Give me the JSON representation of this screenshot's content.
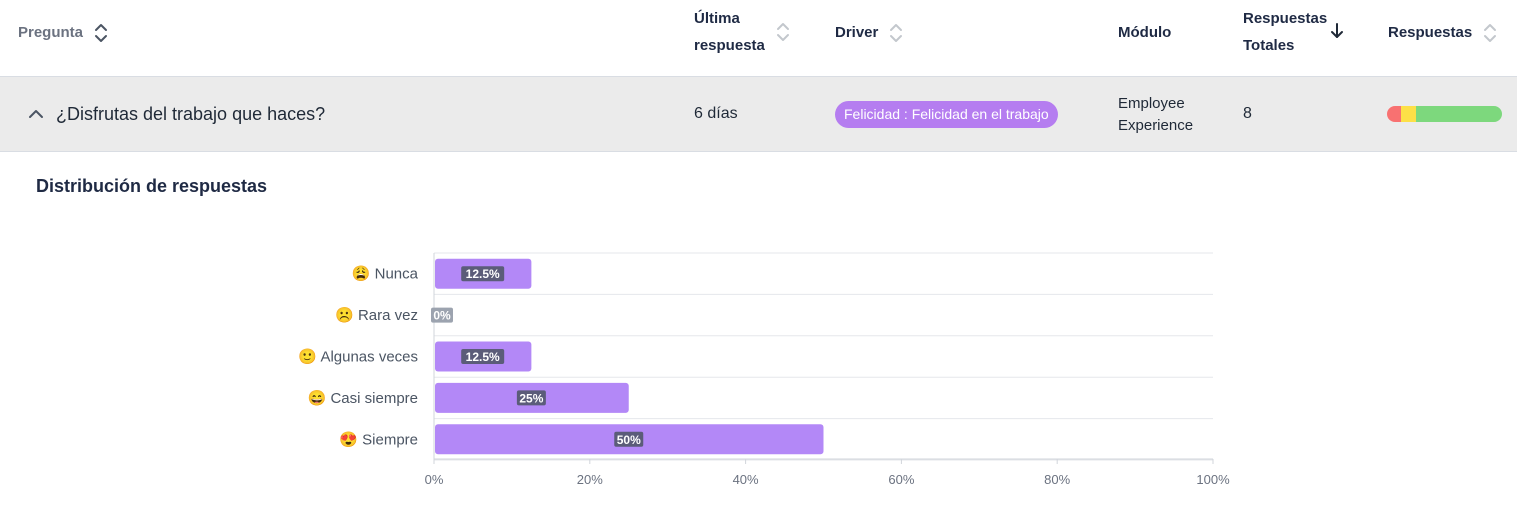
{
  "header": {
    "pregunta": "Pregunta",
    "ultima_respuesta_line1": "Última",
    "ultima_respuesta_line2": "respuesta",
    "driver": "Driver",
    "modulo": "Módulo",
    "respuestas_totales_line1": "Respuestas",
    "respuestas_totales_line2": "Totales",
    "respuestas": "Respuestas"
  },
  "row": {
    "question": "¿Disfrutas del trabajo que haces?",
    "last_response": "6 días",
    "driver": "Felicidad : Felicidad en el trabajo",
    "modulo_line1": "Employee",
    "modulo_line2": "Experience",
    "total": "8",
    "response_bar": [
      {
        "color": "#f87171",
        "fraction": 0.125
      },
      {
        "color": "#fde047",
        "fraction": 0.125
      },
      {
        "color": "#7dd87d",
        "fraction": 0.75
      }
    ]
  },
  "section_title": "Distribución de respuestas",
  "colors": {
    "bar": "#b388f7",
    "pill": "#b57df0",
    "zero_badge": "#9ca3af"
  },
  "chart_data": {
    "type": "bar",
    "orientation": "horizontal",
    "categories": [
      {
        "label": "Nunca",
        "emoji": "😩"
      },
      {
        "label": "Rara vez",
        "emoji": "☹️"
      },
      {
        "label": "Algunas veces",
        "emoji": "🙂"
      },
      {
        "label": "Casi siempre",
        "emoji": "😄"
      },
      {
        "label": "Siempre",
        "emoji": "😍"
      }
    ],
    "values": [
      12.5,
      0,
      12.5,
      25,
      50
    ],
    "value_labels": [
      "12.5%",
      "0%",
      "12.5%",
      "25%",
      "50%"
    ],
    "xlim": [
      0,
      100
    ],
    "xticks": [
      "0%",
      "20%",
      "40%",
      "60%",
      "80%",
      "100%"
    ],
    "grid": true
  }
}
